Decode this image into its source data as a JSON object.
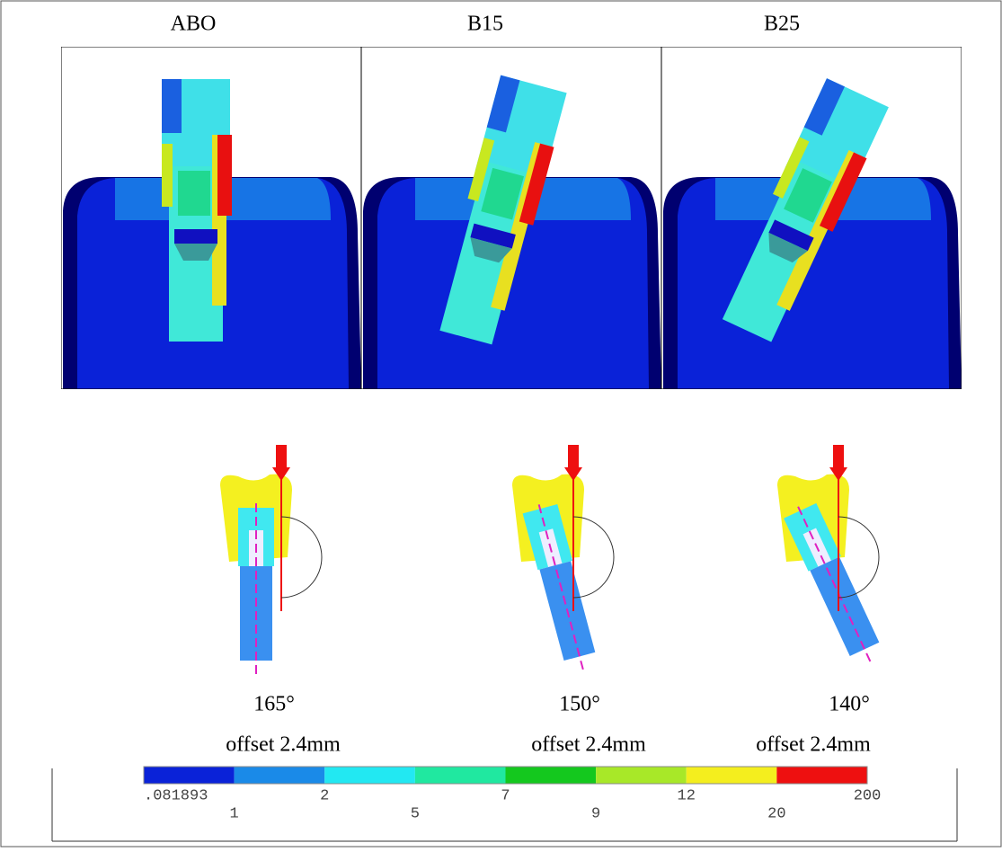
{
  "panels": [
    {
      "title": "ABO",
      "angle": "165°",
      "offset": "offset  2.4mm"
    },
    {
      "title": "B15",
      "angle": "150°",
      "offset": "offset  2.4mm"
    },
    {
      "title": "B25",
      "angle": "140°",
      "offset": "offset  2.4mm"
    }
  ],
  "colorbar": {
    "colors": [
      "#0a22d8",
      "#1a8ae8",
      "#22e8f2",
      "#20e8a0",
      "#14c81e",
      "#a8e828",
      "#f4ee1e",
      "#ee1010"
    ],
    "labels": [
      ".081893",
      "1",
      "2",
      "5",
      "7",
      "9",
      "12",
      "20",
      "200"
    ]
  }
}
